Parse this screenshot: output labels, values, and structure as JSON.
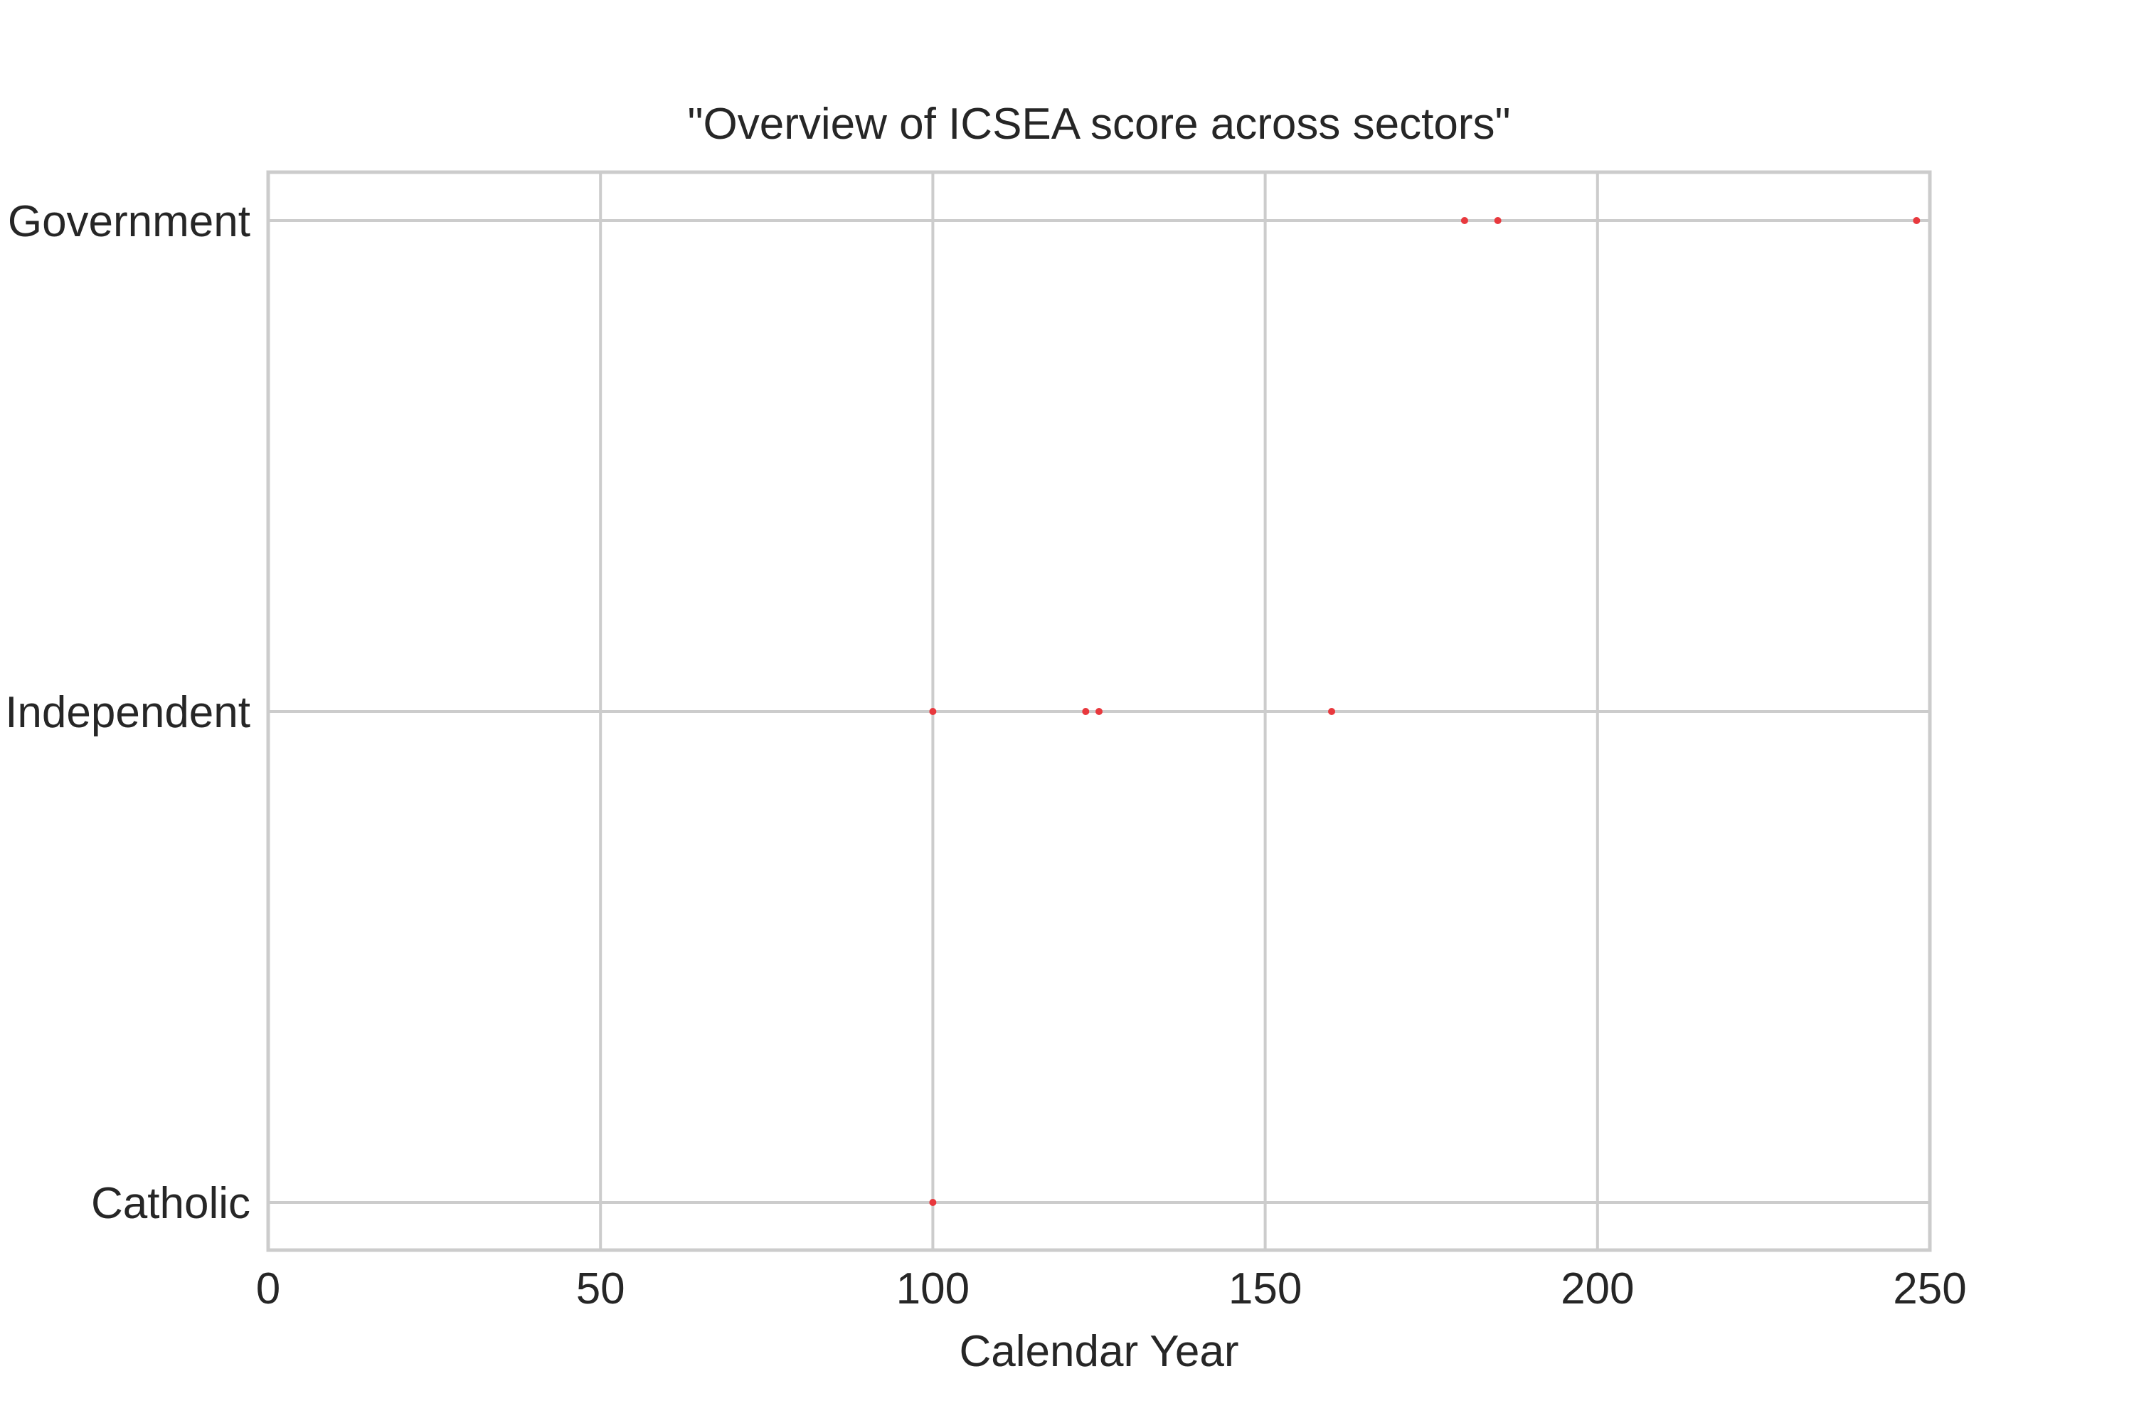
{
  "chart_data": {
    "type": "scatter",
    "title": "\"Overview of ICSEA score across sectors\"",
    "xlabel": "Calendar Year",
    "ylabel": "",
    "xlim": [
      0,
      250
    ],
    "x_ticks": [
      "0",
      "50",
      "100",
      "150",
      "200",
      "250"
    ],
    "categories": [
      "Catholic",
      "Independent",
      "Government"
    ],
    "grid": true,
    "marker_color": "#e8383d",
    "points": [
      {
        "x": 100,
        "y": "Catholic"
      },
      {
        "x": 100,
        "y": "Independent"
      },
      {
        "x": 123,
        "y": "Independent"
      },
      {
        "x": 125,
        "y": "Independent"
      },
      {
        "x": 160,
        "y": "Independent"
      },
      {
        "x": 180,
        "y": "Government"
      },
      {
        "x": 185,
        "y": "Government"
      },
      {
        "x": 248,
        "y": "Government"
      }
    ]
  }
}
